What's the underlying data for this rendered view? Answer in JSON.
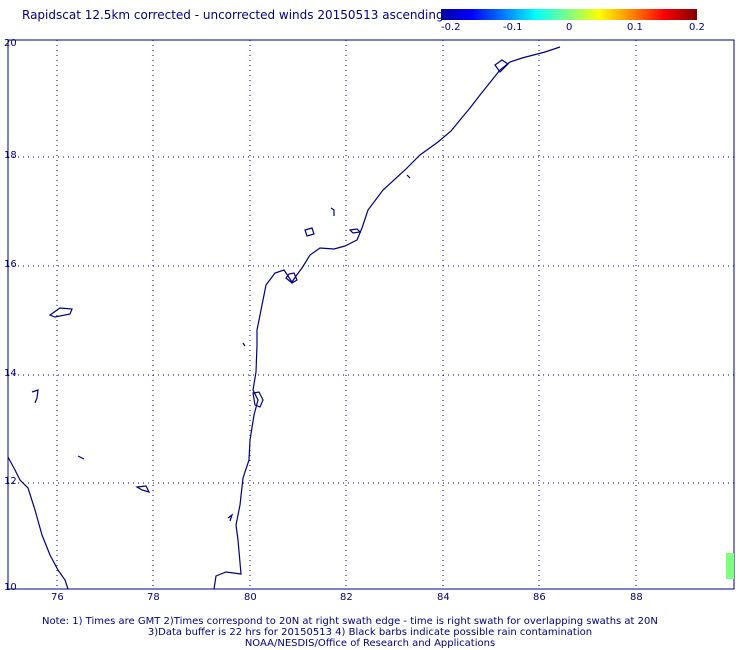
{
  "title": "Rapidscat 12.5km corrected - uncorrected winds 20150513 ascending",
  "colorbar": {
    "ticks": [
      "-0.2",
      "-0.1",
      "0",
      "0.1",
      "0.2"
    ],
    "colors": [
      "#0000a0",
      "#0000ff",
      "#00ffff",
      "#80ff80",
      "#ffff00",
      "#ff8000",
      "#ff0000",
      "#800000"
    ]
  },
  "latitude_labels": [
    "20",
    "18",
    "16",
    "14",
    "12",
    "10"
  ],
  "longitude_labels": [
    "76",
    "78",
    "80",
    "82",
    "84",
    "86",
    "88"
  ],
  "notes": {
    "line1": "Note: 1) Times are GMT 2)Times correspond to 20N at right swath edge - time is right swath for overlapping swaths at 20N",
    "line2": "3)Data buffer is 22 hrs for 20150513 4) Black barbs indicate possible rain contamination",
    "line3": "NOAA/NESDIS/Office of Research and Applications"
  },
  "colors": {
    "coastline": "#000080",
    "grid": "#000080",
    "swath": "#80ff80"
  }
}
